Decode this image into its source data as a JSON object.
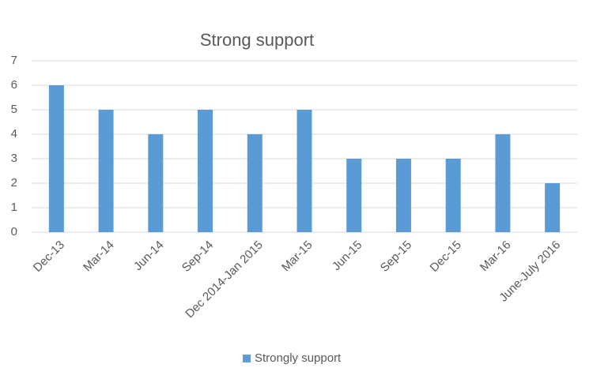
{
  "chart_data": {
    "type": "bar",
    "title": "Strong support",
    "categories": [
      "Dec-13",
      "Mar-14",
      "Jun-14",
      "Sep-14",
      "Dec 2014-Jan 2015",
      "Mar-15",
      "Jun-15",
      "Sep-15",
      "Dec-15",
      "Mar-16",
      "June-July 2016"
    ],
    "series": [
      {
        "name": "Strongly support",
        "color": "#5b9bd5",
        "values": [
          6,
          5,
          4,
          5,
          4,
          5,
          3,
          3,
          3,
          4,
          2
        ]
      }
    ],
    "ylim": [
      0,
      7
    ],
    "yticks": [
      0,
      1,
      2,
      3,
      4,
      5,
      6,
      7
    ],
    "grid": true,
    "legend": "bottom"
  }
}
